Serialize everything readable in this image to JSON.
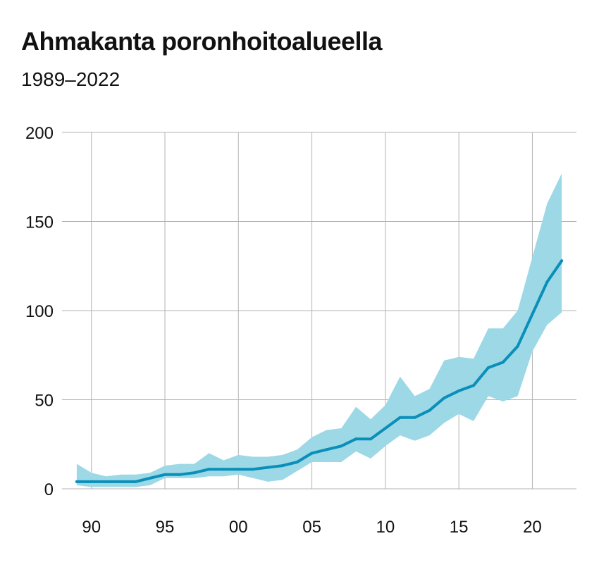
{
  "chart_data": {
    "type": "area",
    "title": "Ahmakanta poronhoitoalueella",
    "subtitle": "1989–2022",
    "xlabel": "",
    "ylabel": "",
    "xlim": [
      1988,
      2023
    ],
    "ylim": [
      0,
      200
    ],
    "grid": true,
    "legend": "none",
    "x_ticks": [
      {
        "value": 1990,
        "label": "90"
      },
      {
        "value": 1995,
        "label": "95"
      },
      {
        "value": 2000,
        "label": "00"
      },
      {
        "value": 2005,
        "label": "05"
      },
      {
        "value": 2010,
        "label": "10"
      },
      {
        "value": 2015,
        "label": "15"
      },
      {
        "value": 2020,
        "label": "20"
      }
    ],
    "y_ticks": [
      {
        "value": 0,
        "label": "0"
      },
      {
        "value": 50,
        "label": "50"
      },
      {
        "value": 100,
        "label": "100"
      },
      {
        "value": 150,
        "label": "150"
      },
      {
        "value": 200,
        "label": "200"
      }
    ],
    "x": [
      1989,
      1990,
      1991,
      1992,
      1993,
      1994,
      1995,
      1996,
      1997,
      1998,
      1999,
      2000,
      2001,
      2002,
      2003,
      2004,
      2005,
      2006,
      2007,
      2008,
      2009,
      2010,
      2011,
      2012,
      2013,
      2014,
      2015,
      2016,
      2017,
      2018,
      2019,
      2020,
      2021,
      2022
    ],
    "series": [
      {
        "role": "estimate",
        "values": [
          4,
          4,
          4,
          4,
          4,
          6,
          8,
          8,
          9,
          11,
          11,
          11,
          11,
          12,
          13,
          15,
          20,
          22,
          24,
          28,
          28,
          34,
          40,
          40,
          44,
          51,
          55,
          58,
          68,
          71,
          80,
          98,
          116,
          128
        ]
      },
      {
        "role": "upper-bound",
        "values": [
          14,
          9,
          7,
          8,
          8,
          9,
          13,
          14,
          14,
          20,
          16,
          19,
          18,
          18,
          19,
          22,
          29,
          33,
          34,
          46,
          39,
          47,
          63,
          52,
          56,
          72,
          74,
          73,
          90,
          90,
          100,
          130,
          160,
          177
        ]
      },
      {
        "role": "lower-bound",
        "values": [
          2,
          1,
          1,
          1,
          1,
          2,
          6,
          6,
          6,
          7,
          7,
          8,
          6,
          4,
          5,
          10,
          15,
          15,
          15,
          21,
          17,
          24,
          30,
          27,
          30,
          37,
          42,
          38,
          52,
          49,
          52,
          77,
          92,
          99
        ]
      }
    ],
    "colors": {
      "line": "#0a8fb9",
      "band": "#9dd8e6",
      "grid": "#b3b3b3"
    }
  }
}
